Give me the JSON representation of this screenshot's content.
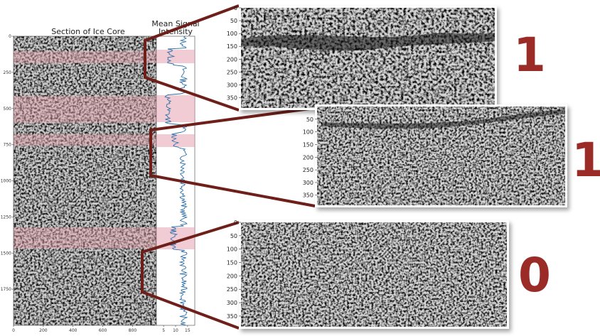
{
  "figure": {
    "core_title": "Section of Ice Core",
    "intensity_title_line1": "Mean Signal",
    "intensity_title_line2": "Intensity",
    "core_y_ticks": [
      "0",
      "250",
      "500",
      "750",
      "1000",
      "1250",
      "1500",
      "1750"
    ],
    "core_x_ticks": [
      "0",
      "200",
      "400",
      "600",
      "800"
    ],
    "intensity_x_ticks": [
      "5",
      "10",
      "15"
    ],
    "highlight_color": "#e8a3b0",
    "connector_color": "#6e1f1a",
    "label_color": "#9b2b26"
  },
  "crops": [
    {
      "label": "1",
      "y_ticks": [
        "0",
        "50",
        "100",
        "150",
        "200",
        "250",
        "300",
        "350"
      ]
    },
    {
      "label": "1",
      "y_ticks": [
        "50",
        "100",
        "150",
        "200",
        "250",
        "300",
        "350"
      ]
    },
    {
      "label": "0",
      "y_ticks": [
        "0",
        "50",
        "100",
        "150",
        "200",
        "250",
        "300",
        "350"
      ]
    }
  ]
}
